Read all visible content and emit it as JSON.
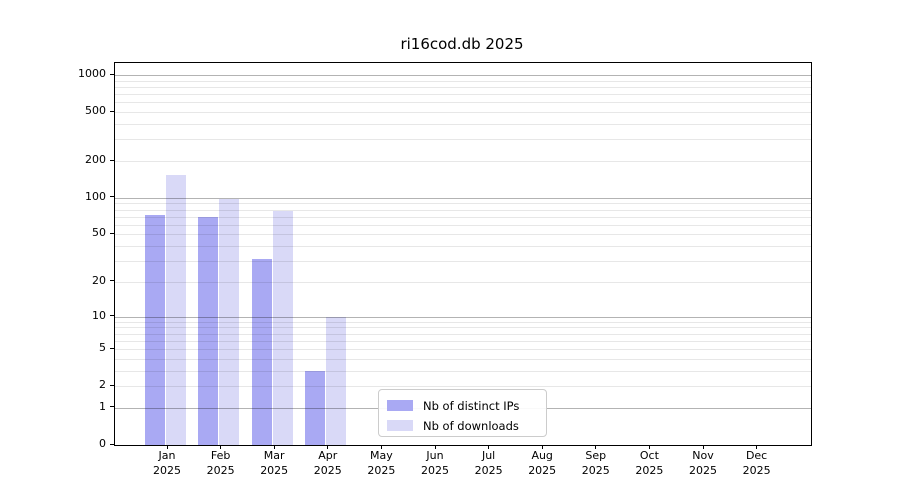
{
  "chart_data": {
    "type": "bar",
    "title": "ri16cod.db 2025",
    "categories": [
      "Jan",
      "Feb",
      "Mar",
      "Apr",
      "May",
      "Jun",
      "Jul",
      "Aug",
      "Sep",
      "Oct",
      "Nov",
      "Dec"
    ],
    "x_tick_second_line": "2025",
    "series": [
      {
        "name": "Nb of distinct IPs",
        "color": "#a9a9f3",
        "values": [
          72,
          70,
          31,
          3,
          0,
          0,
          0,
          0,
          0,
          0,
          0,
          0
        ]
      },
      {
        "name": "Nb of downloads",
        "color": "#d9d9f7",
        "values": [
          155,
          98,
          78,
          10,
          0,
          0,
          0,
          0,
          0,
          0,
          0,
          0
        ]
      }
    ],
    "xlabel": "",
    "ylabel": "",
    "y_axis": {
      "scale": "log10(1+y)",
      "tick_values": [
        0,
        1,
        2,
        5,
        10,
        20,
        50,
        100,
        200,
        500,
        1000
      ],
      "major_gridline_values": [
        1,
        10,
        100,
        1000
      ],
      "minor_gridline_values": [
        2,
        3,
        4,
        5,
        6,
        7,
        8,
        9,
        20,
        30,
        40,
        50,
        60,
        70,
        80,
        90,
        200,
        300,
        400,
        500,
        600,
        700,
        800,
        900
      ],
      "ylim": [
        0,
        1253
      ]
    },
    "grid": true,
    "legend_position": "lower center"
  },
  "colors": {
    "background": "#ffffff",
    "axis_spine": "#000000",
    "major_gridline": "#b3b3b3",
    "minor_gridline": "#e7e7e7",
    "legend_border": "#cccccc",
    "bar_distinct_ips": "#a9a9f3",
    "bar_downloads": "#d9d9f7"
  }
}
